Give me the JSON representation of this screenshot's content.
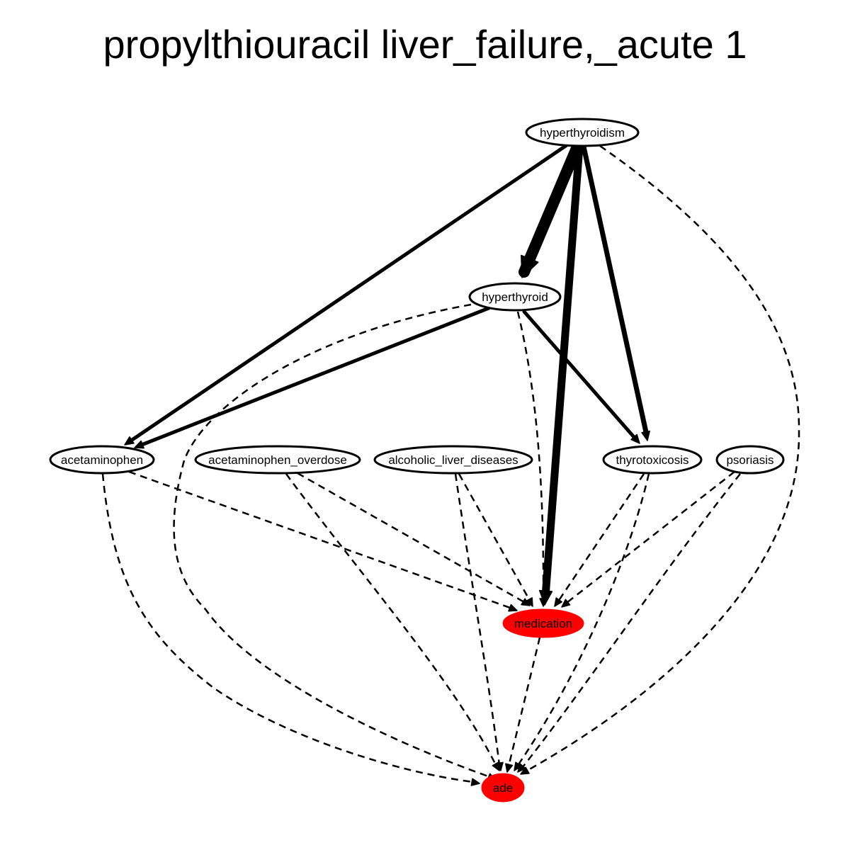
{
  "title": "propylthiouracil liver_failure,_acute 1",
  "colors": {
    "background": "#ffffff",
    "ink": "#000000",
    "outcome_fill": "#ff0000",
    "default_fill": "#ffffff"
  },
  "nodes": [
    {
      "id": "hyperthyroidism",
      "label": "hyperthyroidism",
      "role": "cause"
    },
    {
      "id": "hyperthyroid",
      "label": "hyperthyroid",
      "role": "cause"
    },
    {
      "id": "acetaminophen",
      "label": "acetaminophen",
      "role": "cause"
    },
    {
      "id": "acetaminophen_overdose",
      "label": "acetaminophen_overdose",
      "role": "cause"
    },
    {
      "id": "alcoholic_liver_diseases",
      "label": "alcoholic_liver_diseases",
      "role": "cause"
    },
    {
      "id": "thyrotoxicosis",
      "label": "thyrotoxicosis",
      "role": "cause"
    },
    {
      "id": "psoriasis",
      "label": "psoriasis",
      "role": "cause"
    },
    {
      "id": "medication",
      "label": "medication",
      "role": "outcome"
    },
    {
      "id": "ade",
      "label": "ade",
      "role": "outcome"
    }
  ],
  "edges": [
    {
      "from": "hyperthyroidism",
      "to": "hyperthyroid",
      "style": "solid",
      "weight": "very heavy"
    },
    {
      "from": "hyperthyroidism",
      "to": "medication",
      "style": "solid",
      "weight": "heavy"
    },
    {
      "from": "hyperthyroidism",
      "to": "thyrotoxicosis",
      "style": "solid",
      "weight": "medium-heavy"
    },
    {
      "from": "hyperthyroidism",
      "to": "acetaminophen",
      "style": "solid",
      "weight": "medium"
    },
    {
      "from": "hyperthyroidism",
      "to": "ade",
      "style": "dashed",
      "weight": "light"
    },
    {
      "from": "hyperthyroid",
      "to": "acetaminophen",
      "style": "solid",
      "weight": "medium"
    },
    {
      "from": "hyperthyroid",
      "to": "thyrotoxicosis",
      "style": "solid",
      "weight": "medium"
    },
    {
      "from": "hyperthyroid",
      "to": "medication",
      "style": "dashed",
      "weight": "light"
    },
    {
      "from": "hyperthyroid",
      "to": "ade",
      "style": "dashed",
      "weight": "light"
    },
    {
      "from": "acetaminophen",
      "to": "medication",
      "style": "dashed",
      "weight": "light"
    },
    {
      "from": "acetaminophen",
      "to": "ade",
      "style": "dashed",
      "weight": "light"
    },
    {
      "from": "acetaminophen_overdose",
      "to": "medication",
      "style": "dashed",
      "weight": "light"
    },
    {
      "from": "acetaminophen_overdose",
      "to": "ade",
      "style": "dashed",
      "weight": "light"
    },
    {
      "from": "alcoholic_liver_diseases",
      "to": "medication",
      "style": "dashed",
      "weight": "light"
    },
    {
      "from": "alcoholic_liver_diseases",
      "to": "ade",
      "style": "dashed",
      "weight": "light"
    },
    {
      "from": "thyrotoxicosis",
      "to": "medication",
      "style": "dashed",
      "weight": "light"
    },
    {
      "from": "thyrotoxicosis",
      "to": "ade",
      "style": "dashed",
      "weight": "light"
    },
    {
      "from": "psoriasis",
      "to": "medication",
      "style": "dashed",
      "weight": "light"
    },
    {
      "from": "psoriasis",
      "to": "ade",
      "style": "dashed",
      "weight": "light"
    },
    {
      "from": "medication",
      "to": "ade",
      "style": "dashed",
      "weight": "light"
    }
  ]
}
